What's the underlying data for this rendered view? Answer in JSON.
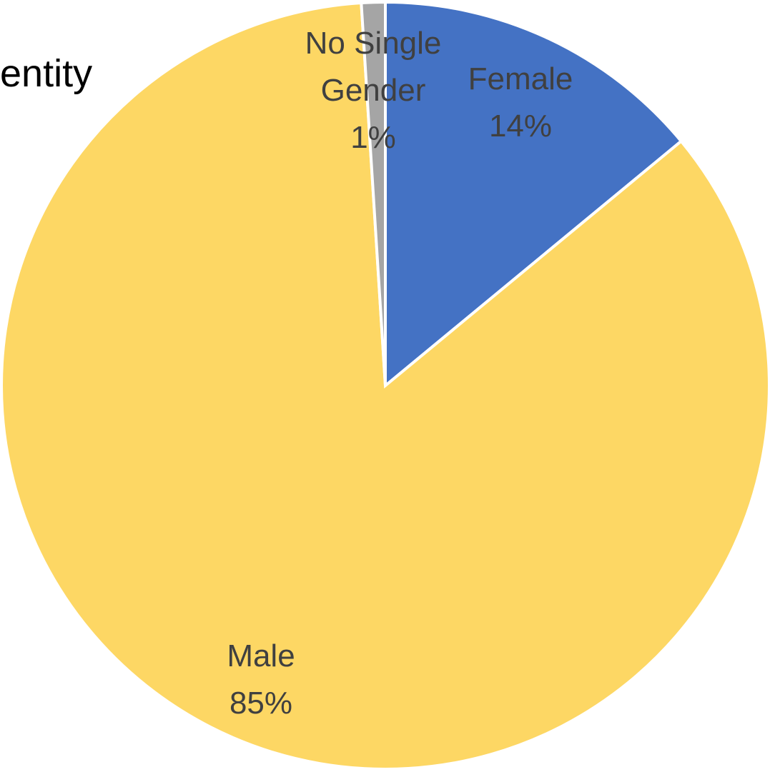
{
  "chart_data": {
    "type": "pie",
    "title": "entity",
    "categories": [
      "Female",
      "Male",
      "No Single Gender"
    ],
    "values": [
      14,
      85,
      1
    ],
    "value_labels": [
      "14%",
      "85%",
      "1%"
    ],
    "colors": [
      "#4472c4",
      "#fdd764",
      "#a5a5a5"
    ]
  }
}
